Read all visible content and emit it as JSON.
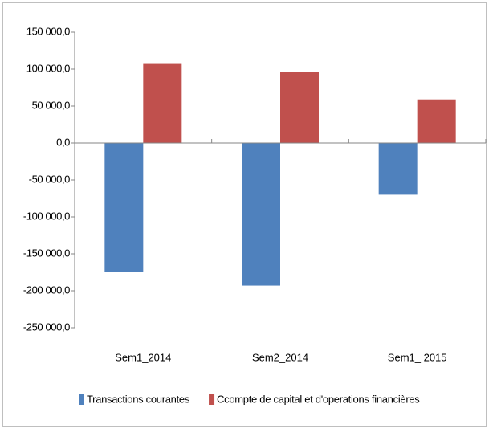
{
  "chart_data": {
    "type": "bar",
    "categories": [
      "Sem1_2014",
      "Sem2_2014",
      "Sem1_ 2015"
    ],
    "series": [
      {
        "name": "Transactions courantes",
        "color": "#4f81bd",
        "values": [
          -175000,
          -193000,
          -70000
        ]
      },
      {
        "name": "Ccompte de capital et d'operations financières",
        "color": "#c0504d",
        "values": [
          107000,
          96000,
          59000
        ]
      }
    ],
    "ylim": [
      -250000,
      150000
    ],
    "yticks": [
      {
        "value": -250000,
        "label": "-250 000,0"
      },
      {
        "value": -200000,
        "label": "-200 000,0"
      },
      {
        "value": -150000,
        "label": "-150 000,0"
      },
      {
        "value": -100000,
        "label": "-100 000,0"
      },
      {
        "value": -50000,
        "label": "-50 000,0"
      },
      {
        "value": 0,
        "label": "0,0"
      },
      {
        "value": 50000,
        "label": "50 000,0"
      },
      {
        "value": 100000,
        "label": "100 000,0"
      },
      {
        "value": 150000,
        "label": "150 000,0"
      }
    ],
    "legend": "bottom"
  }
}
